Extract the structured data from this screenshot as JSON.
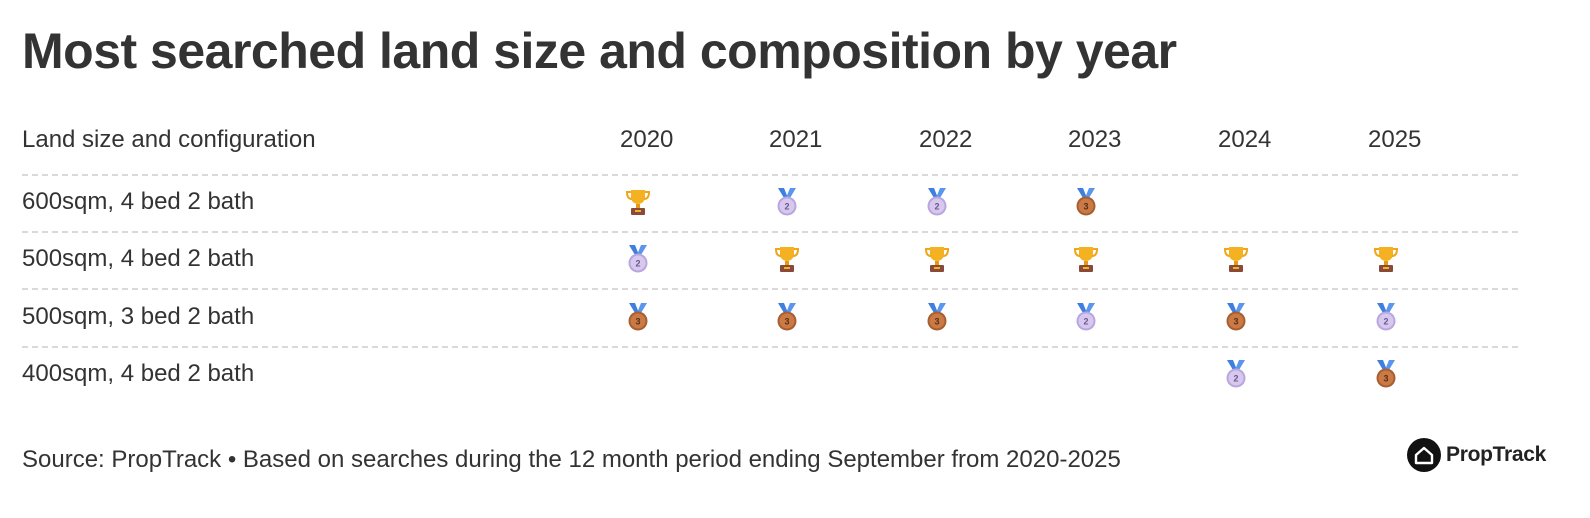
{
  "header": {
    "title": "Most searched land size and composition by year"
  },
  "table": {
    "columns": [
      "Land size and configuration",
      "2020",
      "2021",
      "2022",
      "2023",
      "2024",
      "2025"
    ],
    "rows": [
      {
        "label": "600sqm, 4 bed 2 bath",
        "ranks": [
          1,
          2,
          2,
          3,
          null,
          null
        ]
      },
      {
        "label": "500sqm, 4 bed 2 bath",
        "ranks": [
          2,
          1,
          1,
          1,
          1,
          1
        ]
      },
      {
        "label": "500sqm, 3 bed 2 bath",
        "ranks": [
          3,
          3,
          3,
          2,
          3,
          2
        ]
      },
      {
        "label": "400sqm, 4 bed 2 bath",
        "ranks": [
          null,
          null,
          null,
          null,
          2,
          3
        ]
      }
    ]
  },
  "footer": {
    "source": "Source: PropTrack • Based on searches during the 12 month period ending September from 2020-2025",
    "logo": "PropTrack"
  }
}
